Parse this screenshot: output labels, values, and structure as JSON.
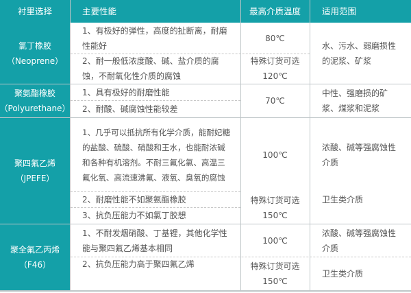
{
  "colors": {
    "header": "#14a0a8"
  },
  "header": [
    "衬里选择",
    "主要性能",
    "最高介质温度",
    "适用范围"
  ],
  "rows": [
    {
      "material": "氯丁橡胶",
      "code": "（Neoprene）",
      "props": [
        "1、有极好的弹性，高度的扯断离，耐磨性能好",
        "2、耐一般低浓度酸、碱、盐介质的腐蚀，不耐氧化性介质的腐蚀"
      ],
      "temp": [
        "80℃",
        "特殊订货可选",
        "120℃"
      ],
      "use": [
        "水、污水、弱磨损性的泥浆、矿浆"
      ]
    },
    {
      "material": "聚氨酯橡胶",
      "code": "（Polyurethane）",
      "props": [
        "1、具有极好的耐磨性能",
        "2、耐酸、碱腐蚀性能较差"
      ],
      "temp": [
        "70℃"
      ],
      "use": [
        "中性、强磨损的矿浆、煤浆和泥浆"
      ]
    },
    {
      "material": "聚四氟乙烯",
      "code": "（JPEFE）",
      "props": [
        "1、几乎可以抵抗所有化学介质，能耐妃糖的盐酸、硫酸、硝酸和王水，也能耐浓碱和各种有机溶剂。不耐三氟化氯、高温三氟化氧、高流速沸氟、液氧、臭氧的腐蚀",
        "2、耐磨性能不如聚氨酯橡胶",
        "3、抗负压能力不如氯丁胶想"
      ],
      "temp": [
        "100℃",
        "特殊订货可选",
        "150℃"
      ],
      "use": [
        "浓酸、碱等强腐蚀性介质",
        "卫生类介质"
      ]
    },
    {
      "material": "聚全氟乙丙烯",
      "code": "（F46）",
      "props": [
        "1、不耐发烟硝酸、丁基锂，其他化学性能与聚四氟乙烯基本相同",
        "2、抗负压能力高于聚四氟乙烯"
      ],
      "temp": [
        "100℃",
        "特殊订货可选",
        "150℃"
      ],
      "use": [
        "浓酸、碱等强腐蚀性介质",
        "卫生类介质"
      ]
    }
  ]
}
